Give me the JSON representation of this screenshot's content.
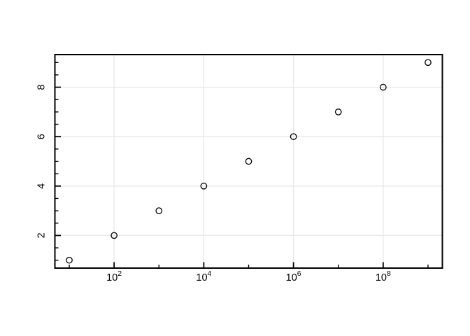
{
  "chart_data": {
    "type": "scatter",
    "title": "",
    "xlabel": "",
    "ylabel": "",
    "xscale": "log10",
    "grid": "major-both",
    "legend": "none",
    "x": [
      10,
      100,
      1000,
      10000,
      100000,
      1000000,
      10000000,
      100000000,
      1000000000
    ],
    "y": [
      1,
      2,
      3,
      4,
      5,
      6,
      7,
      8,
      9
    ],
    "xlim_log10": [
      0.68,
      9.32
    ],
    "ylim": [
      0.68,
      9.32
    ],
    "x_ticks": {
      "label_base": "10",
      "major_exponents": [
        2,
        4,
        6,
        8
      ],
      "major_labels": [
        "2",
        "4",
        "6",
        "8"
      ],
      "minor_exponents": [
        1,
        3,
        5,
        7,
        9
      ]
    },
    "y_ticks": {
      "major": [
        2,
        4,
        6,
        8
      ],
      "major_labels": [
        "2",
        "4",
        "6",
        "8"
      ],
      "minor": [
        1,
        1.5,
        2.5,
        3,
        3.5,
        4.5,
        5,
        5.5,
        6.5,
        7,
        7.5,
        8.5,
        9
      ]
    },
    "marker": "open-circle",
    "colors": {
      "background": "#ffffff",
      "plot_border": "#000000",
      "grid": "#e7e7e7",
      "tick": "#000000",
      "tick_label": "#000000",
      "marker_stroke": "#000000"
    }
  }
}
